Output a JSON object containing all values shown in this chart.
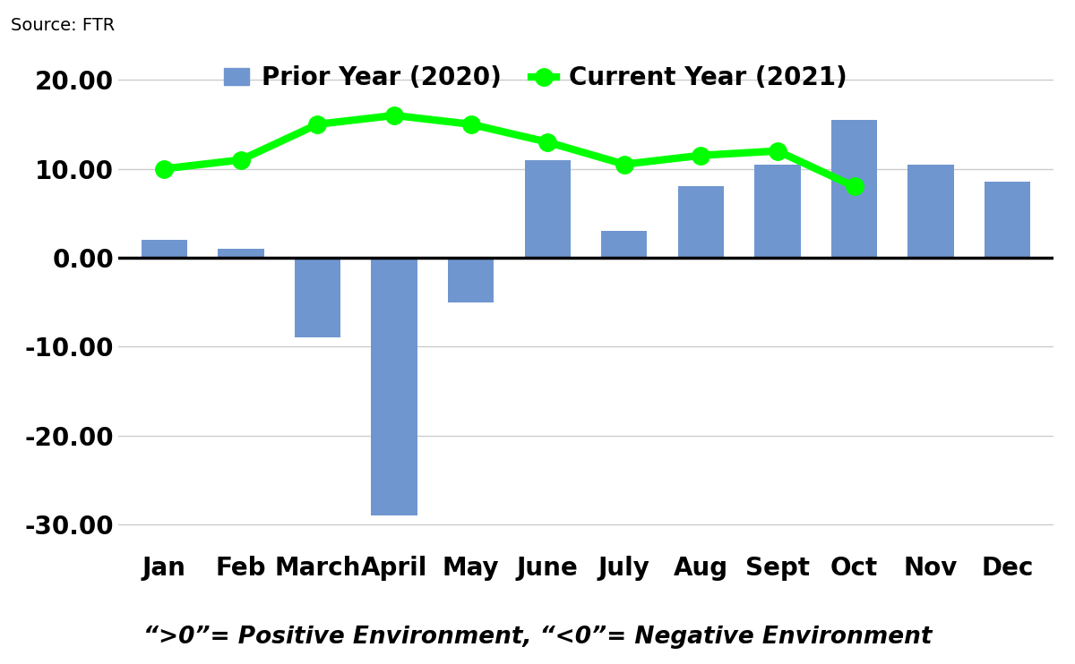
{
  "months": [
    "Jan",
    "Feb",
    "March",
    "April",
    "May",
    "June",
    "July",
    "Aug",
    "Sept",
    "Oct",
    "Nov",
    "Dec"
  ],
  "bar_values": [
    2.0,
    1.0,
    -9.0,
    -29.0,
    -5.0,
    11.0,
    3.0,
    8.0,
    10.5,
    15.5,
    10.5,
    8.5
  ],
  "line_values": [
    10.0,
    11.0,
    15.0,
    16.0,
    15.0,
    13.0,
    10.5,
    11.5,
    12.0,
    8.0,
    null,
    null
  ],
  "bar_color": "#7096D0",
  "line_color": "#00FF00",
  "line_marker": "o",
  "line_markersize": 14,
  "line_linewidth": 6,
  "ylim": [
    -33,
    23
  ],
  "yticks": [
    -30.0,
    -20.0,
    -10.0,
    0.0,
    10.0,
    20.0
  ],
  "source_text": "Source: FTR",
  "footnote": "“>0”= Positive Environment, “<0”= Negative Environment",
  "legend_bar_label": "Prior Year (2020)",
  "legend_line_label": "Current Year (2021)",
  "background_color": "#ffffff",
  "grid_color": "#cccccc",
  "bar_width": 0.6,
  "legend_fontsize": 20,
  "tick_fontsize": 20,
  "source_fontsize": 14,
  "footnote_fontsize": 19
}
